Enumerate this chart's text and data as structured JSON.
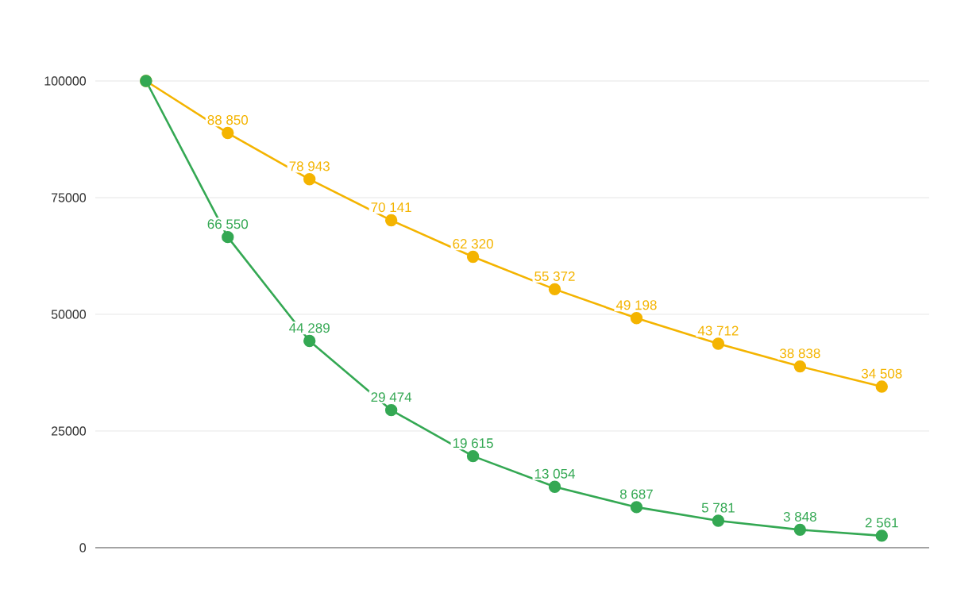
{
  "chart_data": {
    "type": "line",
    "categories": [
      null,
      null,
      null,
      null,
      null,
      null,
      null,
      null,
      null,
      null
    ],
    "series": [
      {
        "color": "#f4b400",
        "values": [
          100000,
          88850,
          78943,
          70141,
          62320,
          55372,
          49198,
          43712,
          38838,
          34508
        ],
        "value_labels": [
          null,
          "88 850",
          "78 943",
          "70 141",
          "62 320",
          "55 372",
          "49 198",
          "43 712",
          "38 838",
          "34 508"
        ]
      },
      {
        "color": "#34a853",
        "values": [
          100000,
          66550,
          44289,
          29474,
          19615,
          13054,
          8687,
          5781,
          3848,
          2561
        ],
        "value_labels": [
          null,
          "66 550",
          "44 289",
          "29 474",
          "19 615",
          "13 054",
          "8 687",
          "5 781",
          "3 848",
          "2 561"
        ]
      }
    ],
    "ylim": [
      0,
      100000
    ],
    "yticks": [
      0,
      25000,
      50000,
      75000,
      100000
    ],
    "grid": "y",
    "marker": "circle",
    "line_style": "solid"
  }
}
